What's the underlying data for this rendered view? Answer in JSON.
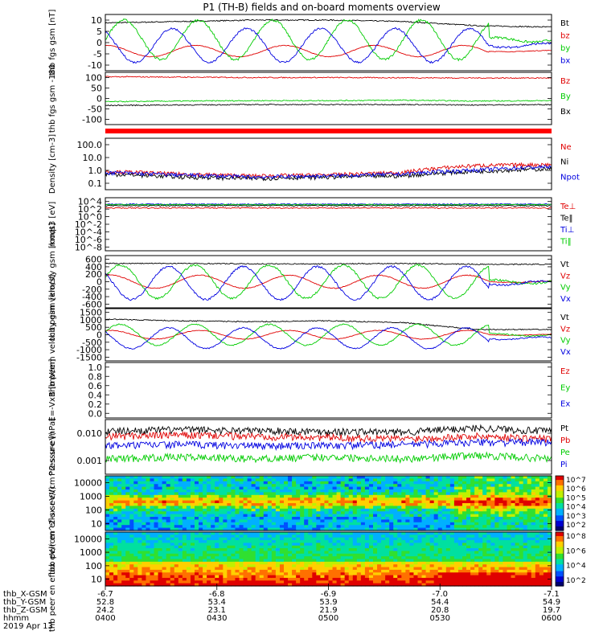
{
  "title": "P1 (TH-B) fields and on-board moments overview",
  "colors": {
    "black": "#000000",
    "red": "#e00000",
    "green": "#00cc00",
    "blue": "#0000e0",
    "panel_border": "#000000",
    "flag_bar": "#ff0000"
  },
  "chart_data": [
    {
      "type": "line",
      "ylabel": "thb fgs gsm [nT]",
      "yticks": [
        "10",
        "5",
        "0",
        "-5",
        "-10"
      ],
      "ylim": [
        -10,
        10
      ],
      "yscale": "linear",
      "series": [
        {
          "name": "Bt",
          "color": "black",
          "kind": "flat",
          "values": [
            7,
            7.5,
            8,
            8,
            7.5,
            6,
            5.5
          ]
        },
        {
          "name": "bz",
          "color": "red",
          "kind": "wave",
          "base": -3,
          "amp": 2,
          "cycles": 5,
          "phase": 1.5
        },
        {
          "name": "by",
          "color": "green",
          "kind": "wave",
          "base": 1,
          "amp": 7,
          "cycles": 6,
          "phase": 0
        },
        {
          "name": "bx",
          "color": "blue",
          "kind": "wave",
          "base": -1,
          "amp": 6,
          "cycles": 6,
          "phase": 2.2
        }
      ]
    },
    {
      "type": "line",
      "ylabel": "thb fgs gsm -180",
      "yticks": [
        "100",
        "50",
        "0",
        "-50",
        "-100"
      ],
      "ylim": [
        -130,
        110
      ],
      "yscale": "linear",
      "series": [
        {
          "name": "Bz",
          "color": "red",
          "kind": "flat",
          "values": [
            90,
            88,
            86,
            86,
            85,
            84,
            84
          ]
        },
        {
          "name": "By",
          "color": "green",
          "kind": "flat",
          "values": [
            -25,
            -22,
            -20,
            -20,
            -18,
            -22,
            -20
          ]
        },
        {
          "name": "Bx",
          "color": "black",
          "kind": "flat",
          "values": [
            -42,
            -40,
            -38,
            -38,
            -38,
            -40,
            -38
          ]
        }
      ]
    },
    {
      "type": "line",
      "ylabel": "Density [cm-3]",
      "yticks": [
        "100.0",
        "10.0",
        "1.0",
        "0.1"
      ],
      "ylim": [
        0.07,
        200
      ],
      "yscale": "log",
      "series": [
        {
          "name": "Ne",
          "color": "red",
          "kind": "flat",
          "values": [
            1.2,
            0.8,
            0.6,
            0.7,
            1.0,
            3.0,
            3.5
          ]
        },
        {
          "name": "Ni",
          "color": "black",
          "kind": "flat",
          "values": [
            0.8,
            0.5,
            0.4,
            0.5,
            0.6,
            1.2,
            1.8
          ]
        },
        {
          "name": "Npot",
          "color": "blue",
          "kind": "flat",
          "values": [
            1.0,
            0.7,
            0.5,
            0.6,
            0.8,
            1.5,
            2.5
          ]
        }
      ]
    },
    {
      "type": "line",
      "ylabel": "moqt3 [eV]",
      "yticks": [
        "10^4",
        "10^2",
        "10^0",
        "10^-2",
        "10^-4",
        "10^-6",
        "10^-8"
      ],
      "ylim": [
        1e-09,
        100000
      ],
      "yscale": "log",
      "series": [
        {
          "name": "Te⊥",
          "color": "red",
          "kind": "flat",
          "values": [
            200,
            200,
            200,
            200,
            200,
            200,
            200
          ]
        },
        {
          "name": "Te‖",
          "color": "black",
          "kind": "flat",
          "values": [
            800,
            800,
            800,
            800,
            800,
            800,
            800
          ]
        },
        {
          "name": "Ti⊥",
          "color": "blue",
          "kind": "flat",
          "values": [
            2000,
            2000,
            2000,
            2000,
            2000,
            2000,
            2000
          ]
        },
        {
          "name": "Ti‖",
          "color": "green",
          "kind": "flat",
          "values": [
            1500,
            1500,
            1500,
            1500,
            1500,
            1500,
            1500
          ]
        }
      ]
    },
    {
      "type": "line",
      "ylabel": "thb peim velocity gsm [km/s]",
      "yticks": [
        "600",
        "400",
        "200",
        "0",
        "-200",
        "-400",
        "-600"
      ],
      "ylim": [
        -600,
        600
      ],
      "yscale": "linear",
      "series": [
        {
          "name": "Vt",
          "color": "black",
          "kind": "flat",
          "values": [
            420,
            420,
            410,
            410,
            420,
            400,
            400
          ]
        },
        {
          "name": "Vz",
          "color": "red",
          "kind": "wave",
          "base": 0,
          "amp": 150,
          "cycles": 5,
          "phase": 1.2
        },
        {
          "name": "Vy",
          "color": "green",
          "kind": "wave",
          "base": 0,
          "amp": 380,
          "cycles": 6,
          "phase": 0.3
        },
        {
          "name": "Vx",
          "color": "blue",
          "kind": "wave",
          "base": -30,
          "amp": 380,
          "cycles": 6,
          "phase": 2.5
        }
      ]
    },
    {
      "type": "line",
      "ylabel": "thb peem velocity gsm [km/s]",
      "yticks": [
        "1500",
        "1000",
        "500",
        "0",
        "-500",
        "-1000",
        "-1500"
      ],
      "ylim": [
        -1500,
        1500
      ],
      "yscale": "linear",
      "series": [
        {
          "name": "Vt",
          "color": "black",
          "kind": "flat",
          "values": [
            900,
            800,
            750,
            800,
            700,
            300,
            300
          ]
        },
        {
          "name": "Vz",
          "color": "red",
          "kind": "wave",
          "base": 0,
          "amp": 250,
          "cycles": 5,
          "phase": 1.2
        },
        {
          "name": "Vy",
          "color": "green",
          "kind": "wave",
          "base": 0,
          "amp": 600,
          "cycles": 6,
          "phase": 0.3
        },
        {
          "name": "Vx",
          "color": "blue",
          "kind": "wave",
          "base": -200,
          "amp": 600,
          "cycles": 6,
          "phase": 2.5
        }
      ]
    },
    {
      "type": "line",
      "ylabel": "E=-VxB [mV/m]",
      "yticks": [
        "1.0",
        "0.8",
        "0.6",
        "0.4",
        "0.2",
        "0.0"
      ],
      "ylim": [
        0,
        1
      ],
      "yscale": "linear",
      "series": [
        {
          "name": "Ez",
          "color": "red",
          "kind": "none"
        },
        {
          "name": "Ey",
          "color": "green",
          "kind": "none"
        },
        {
          "name": "Ex",
          "color": "blue",
          "kind": "none"
        }
      ]
    },
    {
      "type": "line",
      "ylabel": "Pressure [nPa]",
      "yticks": [
        "0.010",
        "0.001"
      ],
      "ylim": [
        0.0008,
        0.08
      ],
      "yscale": "log",
      "series": [
        {
          "name": "Pt",
          "color": "black",
          "kind": "flat",
          "values": [
            0.03,
            0.035,
            0.032,
            0.03,
            0.028,
            0.04,
            0.03
          ]
        },
        {
          "name": "Pb",
          "color": "red",
          "kind": "flat",
          "values": [
            0.02,
            0.022,
            0.02,
            0.018,
            0.016,
            0.02,
            0.016
          ]
        },
        {
          "name": "Pe",
          "color": "green",
          "kind": "flat",
          "values": [
            0.003,
            0.0035,
            0.003,
            0.0035,
            0.003,
            0.004,
            0.003
          ]
        },
        {
          "name": "Pi",
          "color": "blue",
          "kind": "flat",
          "values": [
            0.009,
            0.01,
            0.009,
            0.009,
            0.01,
            0.012,
            0.012
          ]
        }
      ]
    },
    {
      "type": "heatmap",
      "ylabel": "thb peir en eflux eV/(cm^2-s-sr-eV)",
      "yticks": [
        "10000",
        "1000",
        "100",
        "10"
      ],
      "ylim": [
        5,
        25000
      ],
      "yscale": "log",
      "colorbar_label": "eV/(cm^2-s-sr-eV) (All Qs)",
      "colorbar_ticks": [
        "10^7",
        "10^6",
        "10^5",
        "10^4",
        "10^3",
        "10^2"
      ]
    },
    {
      "type": "heatmap",
      "ylabel": "thb peer en eflux eV/(cm^2-s-sr-eV)",
      "yticks": [
        "10000",
        "1000",
        "100",
        "10"
      ],
      "ylim": [
        5,
        25000
      ],
      "yscale": "log",
      "colorbar_label": "eV/(cm^2-s-sr-eV)",
      "colorbar_ticks": [
        "10^8",
        "10^6",
        "10^4",
        "10^2"
      ]
    }
  ],
  "x_axis": {
    "row_labels": [
      "thb_X-GSM",
      "thb_Y-GSM",
      "thb_Z-GSM",
      "hhmm",
      "2019 Apr 13"
    ],
    "columns": [
      {
        "x": "-6.7",
        "y": "52.8",
        "z": "24.2",
        "t": "0400"
      },
      {
        "x": "-6.8",
        "y": "53.4",
        "z": "23.1",
        "t": "0430"
      },
      {
        "x": "-6.9",
        "y": "53.9",
        "z": "21.9",
        "t": "0500"
      },
      {
        "x": "-7.0",
        "y": "54.4",
        "z": "20.8",
        "t": "0530"
      },
      {
        "x": "-7.1",
        "y": "54.9",
        "z": "19.7",
        "t": "0600"
      }
    ]
  }
}
